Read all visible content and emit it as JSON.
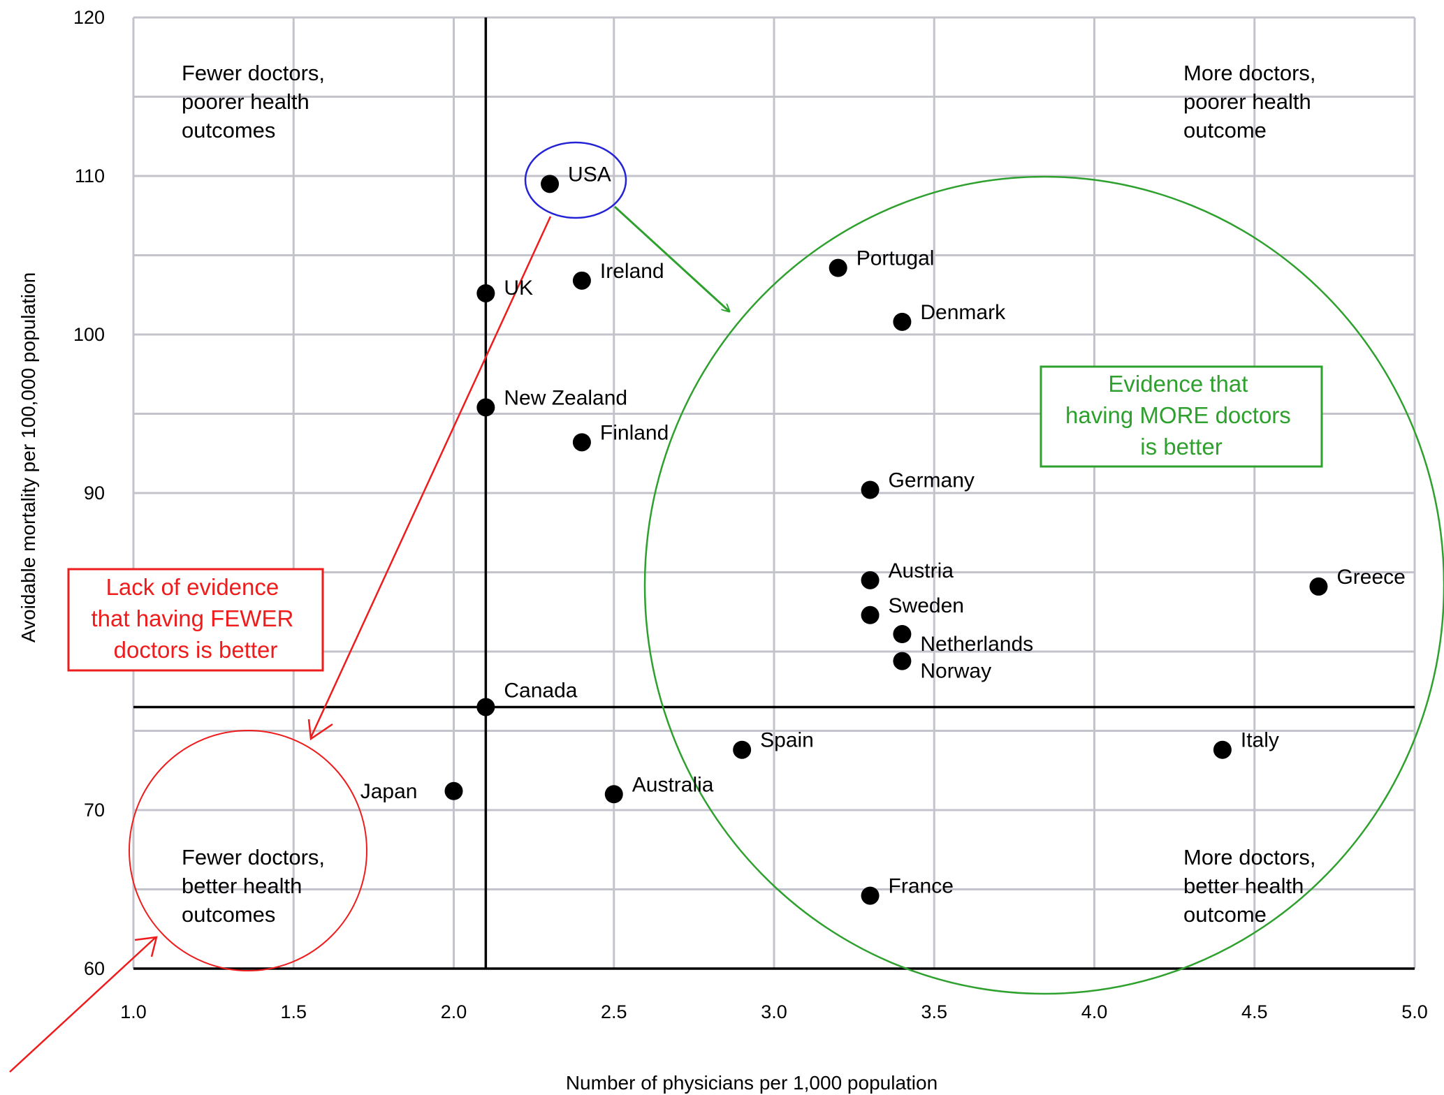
{
  "chart_data": {
    "type": "scatter",
    "xlabel": "Number of physicians per 1,000 population",
    "ylabel": "Avoidable mortality per 100,000 population",
    "xlim": [
      1.0,
      5.0
    ],
    "ylim": [
      60,
      120
    ],
    "x_ticks": [
      "1.0",
      "1.5",
      "2.0",
      "2.5",
      "3.0",
      "3.5",
      "4.0",
      "4.5",
      "5.0"
    ],
    "y_ticks": [
      "60",
      "70",
      "90",
      "100",
      "110",
      "120"
    ],
    "grid": true,
    "points": [
      {
        "label": "USA",
        "x": 2.3,
        "y": 109.5
      },
      {
        "label": "UK",
        "x": 2.1,
        "y": 102.6
      },
      {
        "label": "Ireland",
        "x": 2.4,
        "y": 103.4
      },
      {
        "label": "New Zealand",
        "x": 2.1,
        "y": 95.4
      },
      {
        "label": "Finland",
        "x": 2.4,
        "y": 93.2
      },
      {
        "label": "Portugal",
        "x": 3.2,
        "y": 104.2
      },
      {
        "label": "Denmark",
        "x": 3.4,
        "y": 100.8
      },
      {
        "label": "Germany",
        "x": 3.3,
        "y": 90.2
      },
      {
        "label": "Austria",
        "x": 3.3,
        "y": 84.5
      },
      {
        "label": "Sweden",
        "x": 3.3,
        "y": 82.3
      },
      {
        "label": "Netherlands",
        "x": 3.4,
        "y": 81.1
      },
      {
        "label": "Norway",
        "x": 3.4,
        "y": 79.4
      },
      {
        "label": "Greece",
        "x": 4.7,
        "y": 84.1
      },
      {
        "label": "Canada",
        "x": 2.1,
        "y": 76.5
      },
      {
        "label": "Spain",
        "x": 2.9,
        "y": 73.8
      },
      {
        "label": "Italy",
        "x": 4.4,
        "y": 73.8
      },
      {
        "label": "Japan",
        "x": 2.0,
        "y": 71.2
      },
      {
        "label": "Australia",
        "x": 2.5,
        "y": 71.0
      },
      {
        "label": "France",
        "x": 3.3,
        "y": 64.6
      }
    ],
    "reference_lines": {
      "x": 2.1,
      "y": 76.5
    },
    "quadrant_labels": {
      "top_left": [
        "Fewer doctors,",
        "poorer health",
        "outcomes"
      ],
      "top_right": [
        "More doctors,",
        "poorer health",
        "outcome"
      ],
      "bottom_left": [
        "Fewer doctors,",
        "better health",
        "outcomes"
      ],
      "bottom_right": [
        "More doctors,",
        "better health",
        "outcome"
      ]
    },
    "annotations": {
      "red_box": [
        "Lack of evidence",
        "that having FEWER",
        "doctors is better"
      ],
      "green_box": [
        "Evidence that",
        "having MORE doctors",
        "is better"
      ]
    },
    "colors": {
      "points": "#000000",
      "grid": "#c3c3cc",
      "red": "#ee1c1c",
      "green": "#2ea02e",
      "blue": "#2424d6"
    }
  }
}
